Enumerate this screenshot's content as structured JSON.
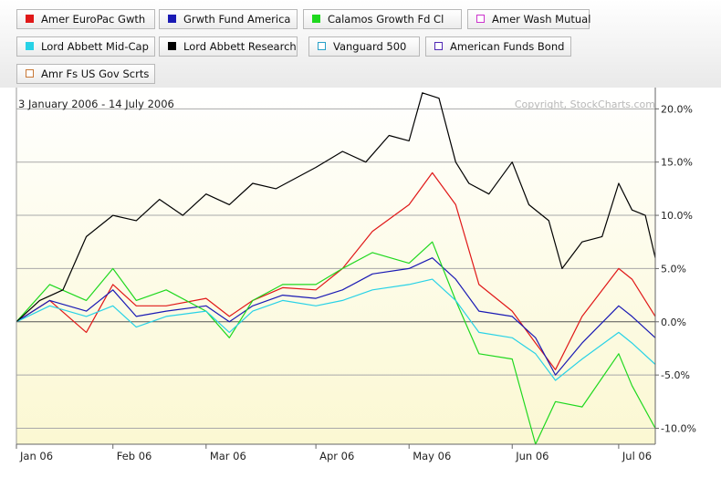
{
  "chart_data": {
    "type": "line",
    "date_range": "3 January 2006 - 14 July 2006",
    "copyright": "Copyright, StockCharts.com",
    "x_start": "2006-01-03",
    "x_end": "2006-07-14",
    "x_ticks": [
      {
        "date": "2006-01-03",
        "label": "Jan 06"
      },
      {
        "date": "2006-02-01",
        "label": "Feb 06"
      },
      {
        "date": "2006-03-01",
        "label": "Mar 06"
      },
      {
        "date": "2006-04-03",
        "label": "Apr 06"
      },
      {
        "date": "2006-05-01",
        "label": "May 06"
      },
      {
        "date": "2006-06-01",
        "label": "Jun 06"
      },
      {
        "date": "2006-07-03",
        "label": "Jul 06"
      }
    ],
    "ylim": [
      -11.5,
      22
    ],
    "y_ticks": [
      {
        "value": 20,
        "label": "20.0%"
      },
      {
        "value": 15,
        "label": "15.0%"
      },
      {
        "value": 10,
        "label": "10.0%"
      },
      {
        "value": 5,
        "label": "5.0%"
      },
      {
        "value": 0,
        "label": "0.0%"
      },
      {
        "value": -5,
        "label": "-5.0%"
      },
      {
        "value": -10,
        "label": "-10.0%"
      }
    ],
    "y_axis_side": "right",
    "grid": true,
    "background_gradient": [
      "#ffffff",
      "#fbf8d2"
    ],
    "series": [
      {
        "name": "Amer EuroPac Gwth",
        "color": "#e01818",
        "swatch": "fill",
        "x": [
          "2006-01-03",
          "2006-01-13",
          "2006-01-24",
          "2006-02-01",
          "2006-02-08",
          "2006-02-17",
          "2006-03-01",
          "2006-03-08",
          "2006-03-15",
          "2006-03-24",
          "2006-04-03",
          "2006-04-11",
          "2006-04-20",
          "2006-05-01",
          "2006-05-08",
          "2006-05-15",
          "2006-05-22",
          "2006-06-01",
          "2006-06-08",
          "2006-06-14",
          "2006-06-22",
          "2006-07-03",
          "2006-07-07",
          "2006-07-14"
        ],
        "values": [
          0,
          2.0,
          -1.0,
          3.5,
          1.5,
          1.5,
          2.2,
          0.5,
          2.0,
          3.2,
          3.0,
          5.0,
          8.5,
          11.0,
          14.0,
          11.0,
          3.5,
          1.0,
          -2.0,
          -4.5,
          0.5,
          5.0,
          4.0,
          0.5
        ]
      },
      {
        "name": "Grwth Fund America",
        "color": "#1a1ab4",
        "swatch": "fill",
        "x": [
          "2006-01-03",
          "2006-01-13",
          "2006-01-24",
          "2006-02-01",
          "2006-02-08",
          "2006-02-17",
          "2006-03-01",
          "2006-03-08",
          "2006-03-15",
          "2006-03-24",
          "2006-04-03",
          "2006-04-11",
          "2006-04-20",
          "2006-05-01",
          "2006-05-08",
          "2006-05-15",
          "2006-05-22",
          "2006-06-01",
          "2006-06-08",
          "2006-06-14",
          "2006-06-22",
          "2006-07-03",
          "2006-07-07",
          "2006-07-14"
        ],
        "values": [
          0,
          2.0,
          1.0,
          3.0,
          0.5,
          1.0,
          1.5,
          0.0,
          1.5,
          2.5,
          2.2,
          3.0,
          4.5,
          5.0,
          6.0,
          4.0,
          1.0,
          0.5,
          -1.5,
          -5.0,
          -2.0,
          1.5,
          0.5,
          -1.5
        ]
      },
      {
        "name": "Calamos Growth Fd Cl",
        "color": "#1ed81e",
        "swatch": "fill",
        "x": [
          "2006-01-03",
          "2006-01-13",
          "2006-01-24",
          "2006-02-01",
          "2006-02-08",
          "2006-02-17",
          "2006-03-01",
          "2006-03-08",
          "2006-03-15",
          "2006-03-24",
          "2006-04-03",
          "2006-04-11",
          "2006-04-20",
          "2006-05-01",
          "2006-05-08",
          "2006-05-15",
          "2006-05-22",
          "2006-06-01",
          "2006-06-08",
          "2006-06-14",
          "2006-06-22",
          "2006-07-03",
          "2006-07-07",
          "2006-07-14"
        ],
        "values": [
          0,
          3.5,
          2.0,
          5.0,
          2.0,
          3.0,
          1.0,
          -1.5,
          2.0,
          3.5,
          3.5,
          5.0,
          6.5,
          5.5,
          7.5,
          2.0,
          -3.0,
          -3.5,
          -11.5,
          -7.5,
          -8.0,
          -3.0,
          -6.0,
          -10.0
        ]
      },
      {
        "name": "Amer Wash Mutual",
        "color": "#cc33cc",
        "swatch": "outline",
        "x": [],
        "values": []
      },
      {
        "name": "Lord Abbett Mid-Cap",
        "color": "#28d2e6",
        "swatch": "fill",
        "x": [
          "2006-01-03",
          "2006-01-13",
          "2006-01-24",
          "2006-02-01",
          "2006-02-08",
          "2006-02-17",
          "2006-03-01",
          "2006-03-08",
          "2006-03-15",
          "2006-03-24",
          "2006-04-03",
          "2006-04-11",
          "2006-04-20",
          "2006-05-01",
          "2006-05-08",
          "2006-05-15",
          "2006-05-22",
          "2006-06-01",
          "2006-06-08",
          "2006-06-14",
          "2006-06-22",
          "2006-07-03",
          "2006-07-07",
          "2006-07-14"
        ],
        "values": [
          0,
          1.5,
          0.5,
          1.5,
          -0.5,
          0.5,
          1.0,
          -1.0,
          1.0,
          2.0,
          1.5,
          2.0,
          3.0,
          3.5,
          4.0,
          2.0,
          -1.0,
          -1.5,
          -3.0,
          -5.5,
          -3.5,
          -1.0,
          -2.0,
          -4.0
        ]
      },
      {
        "name": "Lord Abbett Research",
        "color": "#000000",
        "swatch": "fill",
        "x": [
          "2006-01-03",
          "2006-01-10",
          "2006-01-17",
          "2006-01-24",
          "2006-02-01",
          "2006-02-08",
          "2006-02-15",
          "2006-02-22",
          "2006-03-01",
          "2006-03-08",
          "2006-03-15",
          "2006-03-22",
          "2006-04-03",
          "2006-04-11",
          "2006-04-18",
          "2006-04-25",
          "2006-05-01",
          "2006-05-05",
          "2006-05-10",
          "2006-05-15",
          "2006-05-19",
          "2006-05-25",
          "2006-06-01",
          "2006-06-06",
          "2006-06-12",
          "2006-06-16",
          "2006-06-22",
          "2006-06-28",
          "2006-07-03",
          "2006-07-07",
          "2006-07-11",
          "2006-07-14"
        ],
        "values": [
          0,
          2.0,
          3.0,
          8.0,
          10.0,
          9.5,
          11.5,
          10.0,
          12.0,
          11.0,
          13.0,
          12.5,
          14.5,
          16.0,
          15.0,
          17.5,
          17.0,
          21.5,
          21.0,
          15.0,
          13.0,
          12.0,
          15.0,
          11.0,
          9.5,
          5.0,
          7.5,
          8.0,
          13.0,
          10.5,
          10.0,
          6.0
        ]
      },
      {
        "name": "Vanguard 500",
        "color": "#28a0c8",
        "swatch": "outline",
        "x": [],
        "values": []
      },
      {
        "name": "American Funds Bond",
        "color": "#5028b4",
        "swatch": "outline",
        "x": [],
        "values": []
      },
      {
        "name": "Amr Fs US Gov Scrts",
        "color": "#c87837",
        "swatch": "outline",
        "x": [],
        "values": []
      }
    ]
  }
}
